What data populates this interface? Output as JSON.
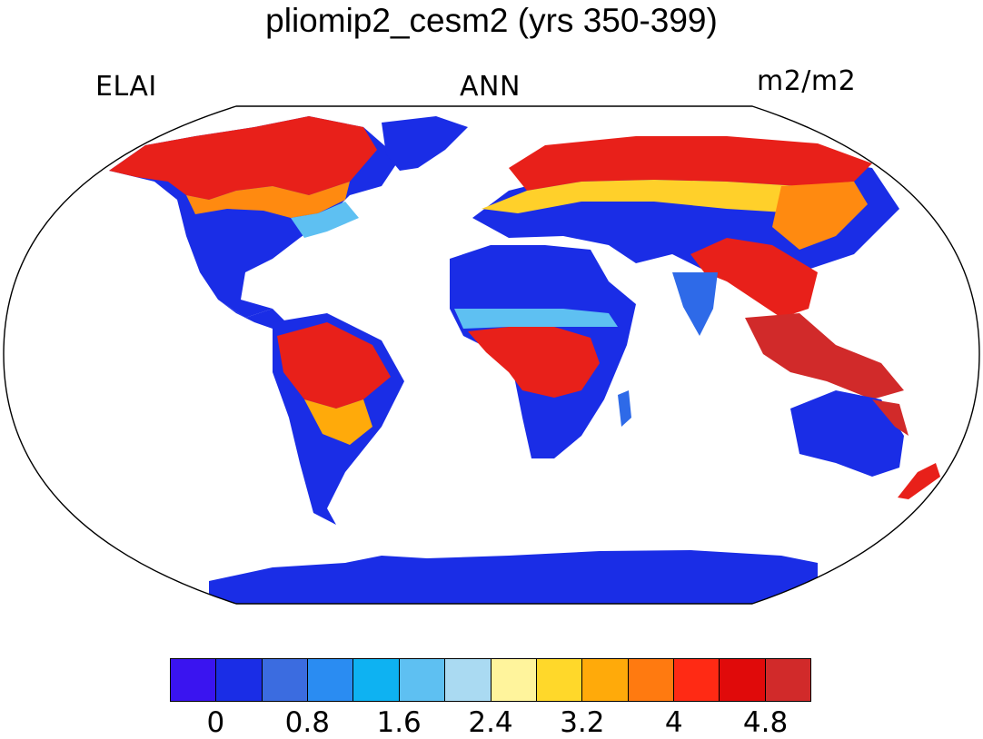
{
  "figure": {
    "title": "pliomip2_cesm2 (yrs 350-399)",
    "left_label": "ELAI",
    "center_label": "ANN",
    "right_label": "m2/m2"
  },
  "colors": {
    "low": "#1a2de6",
    "mid_low": "#2e6ae8",
    "high": "#e8201a",
    "peak": "#d12a2a",
    "mid": "#ffd02a",
    "warm": "#ff8a10"
  },
  "colorbar": {
    "colors": [
      "#3a14f0",
      "#1a2de6",
      "#3b6ce0",
      "#2a8cf2",
      "#0eb2f2",
      "#5ec0f2",
      "#aadaf2",
      "#fff49c",
      "#ffd82a",
      "#ffaa0a",
      "#ff7a10",
      "#ff2a14",
      "#e00a0a",
      "#d12a2a"
    ],
    "labels": [
      "0",
      "0.8",
      "1.6",
      "2.4",
      "3.2",
      "4",
      "4.8"
    ]
  }
}
